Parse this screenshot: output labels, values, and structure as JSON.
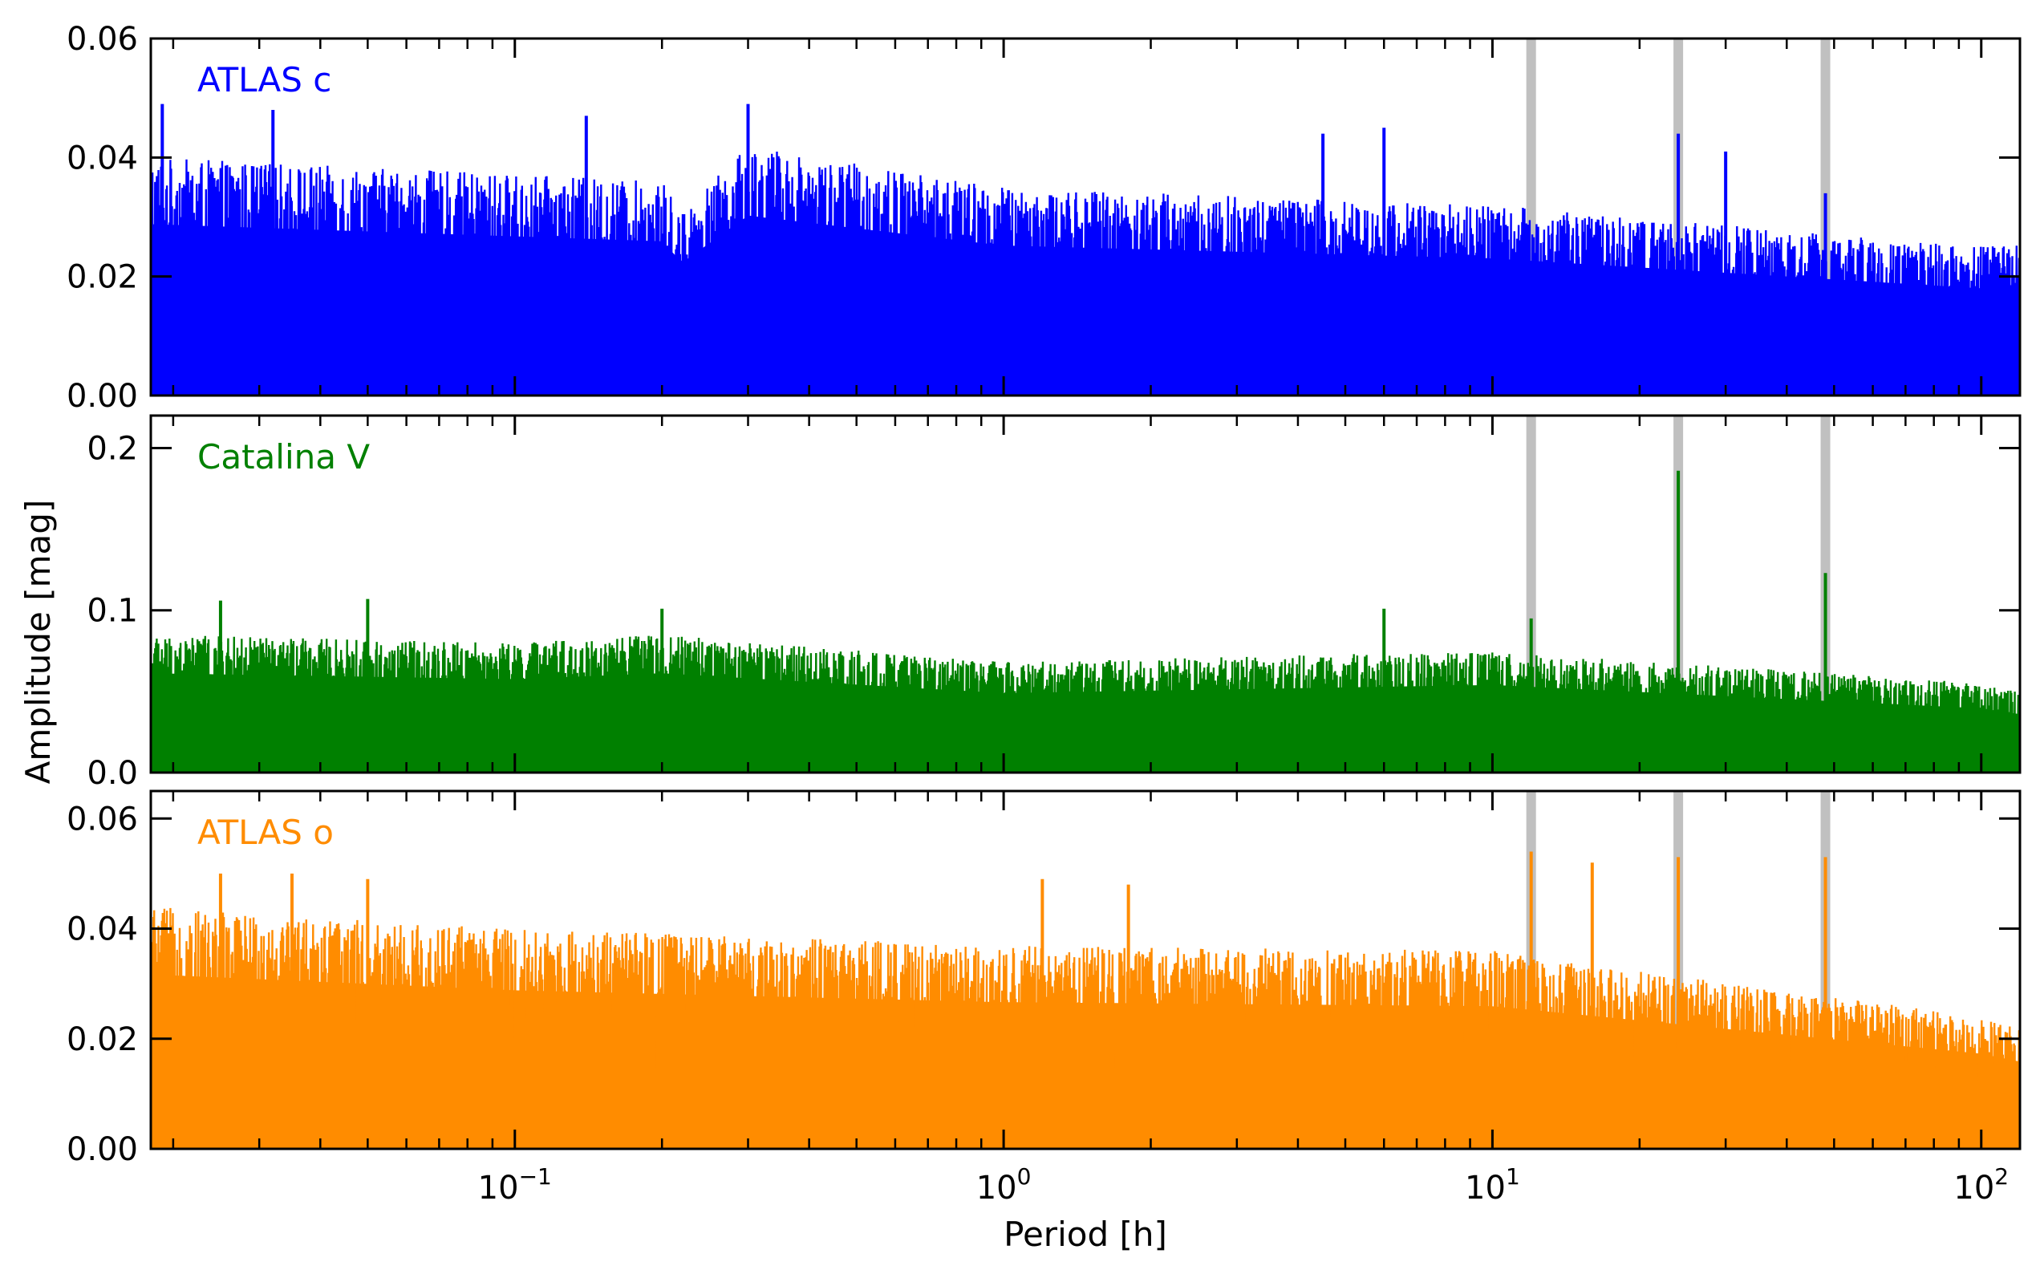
{
  "chart_data": {
    "type": "line",
    "xlabel": "Period [h]",
    "ylabel": "Amplitude [mag]",
    "xscale": "log",
    "xlim": [
      0.018,
      120
    ],
    "xticks": [
      {
        "value": 0.1,
        "base": "10",
        "exp": "−1"
      },
      {
        "value": 1,
        "base": "10",
        "exp": "0"
      },
      {
        "value": 10,
        "base": "10",
        "exp": "1"
      },
      {
        "value": 100,
        "base": "10",
        "exp": "2"
      }
    ],
    "highlighted_periods": [
      12,
      24,
      48
    ],
    "highlight_color": "#c0c0c0",
    "shared_x": true,
    "panels": [
      {
        "label": "ATLAS c",
        "color": "#0000ff",
        "ylim": [
          0,
          0.06
        ],
        "yticks": [
          "0.00",
          "0.02",
          "0.04",
          "0.06"
        ],
        "ytick_values": [
          0,
          0.02,
          0.04,
          0.06
        ],
        "envelope": {
          "x": [
            0.018,
            0.2,
            0.22,
            0.3,
            1,
            10,
            100,
            120
          ],
          "y": [
            0.04,
            0.036,
            0.031,
            0.042,
            0.035,
            0.032,
            0.025,
            0.026
          ]
        },
        "peaks": [
          {
            "x": 0.3,
            "y": 0.049
          },
          {
            "x": 0.019,
            "y": 0.049
          },
          {
            "x": 0.032,
            "y": 0.048
          },
          {
            "x": 0.14,
            "y": 0.047
          },
          {
            "x": 4.5,
            "y": 0.044
          },
          {
            "x": 6,
            "y": 0.045
          },
          {
            "x": 24,
            "y": 0.044
          },
          {
            "x": 30,
            "y": 0.041
          },
          {
            "x": 48,
            "y": 0.034
          }
        ]
      },
      {
        "label": "Catalina V",
        "color": "#008000",
        "ylim": [
          0,
          0.22
        ],
        "yticks": [
          "0.0",
          "0.1",
          "0.2"
        ],
        "ytick_values": [
          0,
          0.1,
          0.2
        ],
        "envelope": {
          "x": [
            0.018,
            0.1,
            0.2,
            1,
            10,
            100,
            120
          ],
          "y": [
            0.085,
            0.08,
            0.085,
            0.068,
            0.075,
            0.055,
            0.05
          ]
        },
        "peaks": [
          {
            "x": 24,
            "y": 0.186
          },
          {
            "x": 48,
            "y": 0.123
          },
          {
            "x": 0.05,
            "y": 0.107
          },
          {
            "x": 6,
            "y": 0.101
          },
          {
            "x": 0.2,
            "y": 0.101
          },
          {
            "x": 0.025,
            "y": 0.106
          },
          {
            "x": 12,
            "y": 0.095
          }
        ]
      },
      {
        "label": "ATLAS o",
        "color": "#ff8c00",
        "ylim": [
          0,
          0.065
        ],
        "yticks": [
          "0.00",
          "0.02",
          "0.04",
          "0.06"
        ],
        "ytick_values": [
          0,
          0.02,
          0.04,
          0.06
        ],
        "envelope": {
          "x": [
            0.018,
            0.1,
            1,
            10,
            100,
            120
          ],
          "y": [
            0.044,
            0.04,
            0.037,
            0.036,
            0.024,
            0.022
          ]
        },
        "peaks": [
          {
            "x": 12,
            "y": 0.054
          },
          {
            "x": 24,
            "y": 0.053
          },
          {
            "x": 48,
            "y": 0.053
          },
          {
            "x": 16,
            "y": 0.052
          },
          {
            "x": 0.025,
            "y": 0.05
          },
          {
            "x": 0.035,
            "y": 0.05
          },
          {
            "x": 0.05,
            "y": 0.049
          },
          {
            "x": 1.2,
            "y": 0.049
          },
          {
            "x": 1.8,
            "y": 0.048
          }
        ]
      }
    ]
  }
}
